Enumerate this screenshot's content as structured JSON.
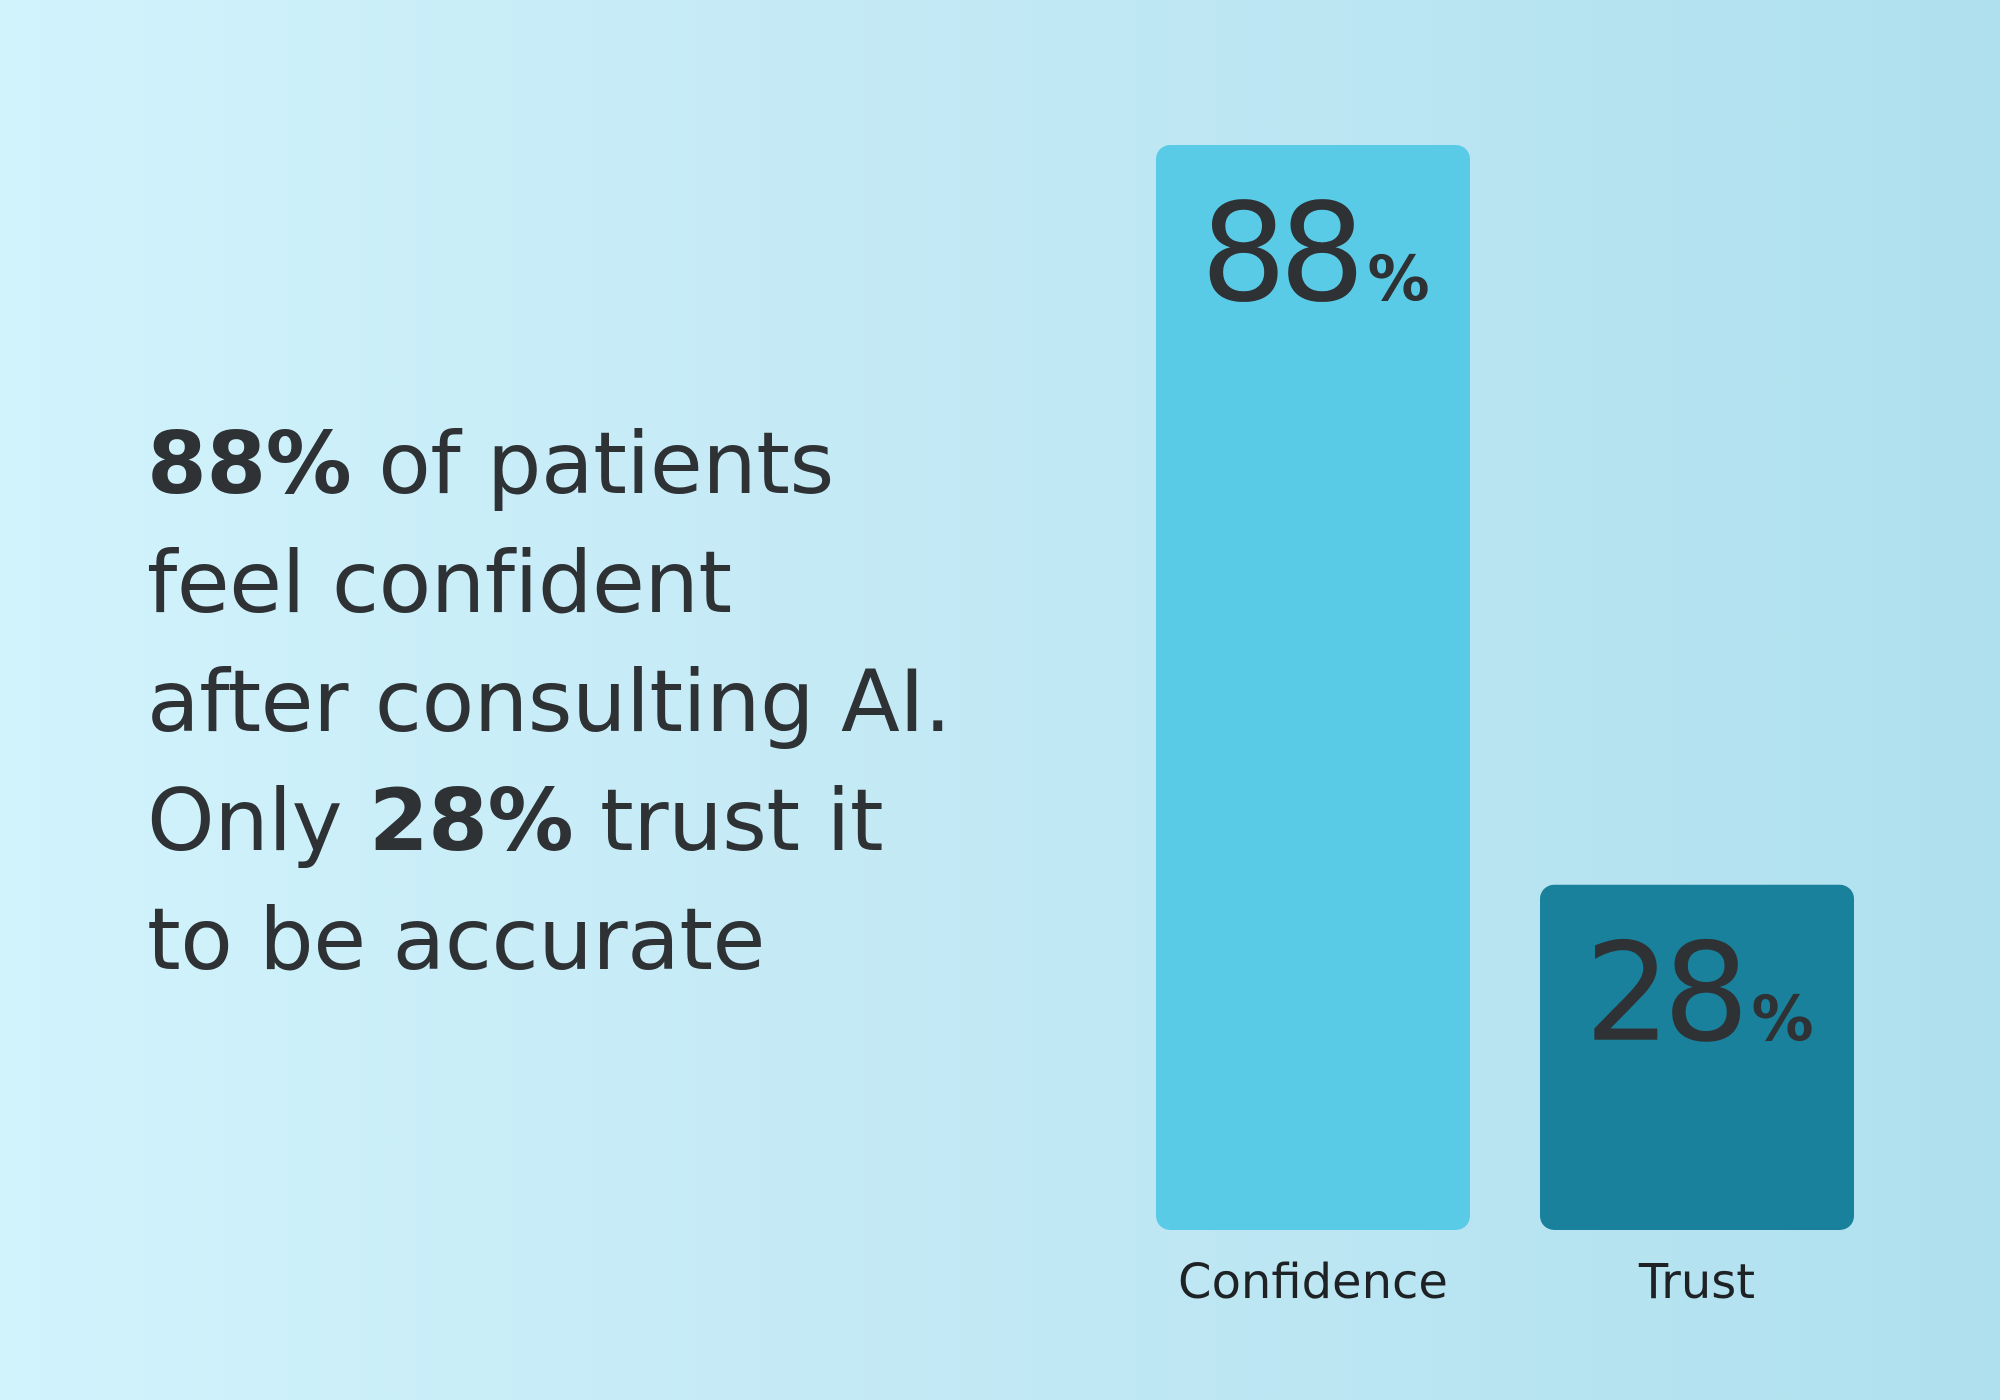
{
  "headline": {
    "line1_strong": "88%",
    "line1_rest": " of patients",
    "line2": "feel confident",
    "line3": "after consulting AI.",
    "line4_start": "Only ",
    "line4_strong": "28%",
    "line4_rest": " trust it",
    "line5": "to be accurate"
  },
  "chart_data": {
    "type": "bar",
    "categories": [
      "Confidence",
      "Trust"
    ],
    "values": [
      88,
      28
    ],
    "unit": "%",
    "ylim": [
      0,
      88
    ],
    "title": "",
    "xlabel": "",
    "ylabel": "",
    "grid": false,
    "legend": "none",
    "colors": [
      "#5acbe7",
      "#1a819c"
    ]
  }
}
